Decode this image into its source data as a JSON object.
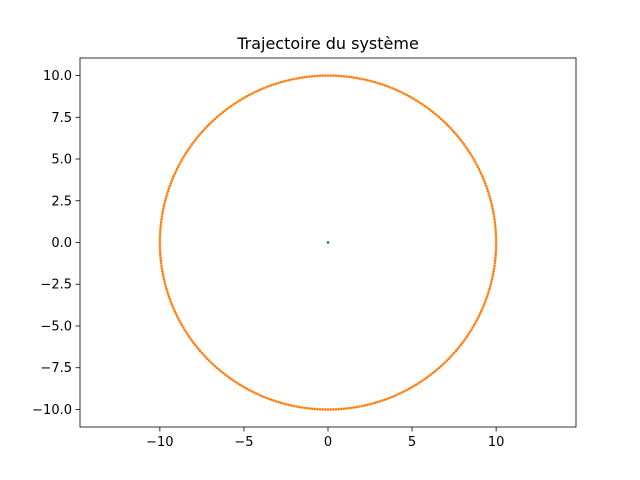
{
  "chart_data": {
    "type": "scatter",
    "title": "Trajectoire du système",
    "xlabel": "",
    "ylabel": "",
    "xlim": [
      -14.75,
      14.75
    ],
    "ylim": [
      -11.05,
      11.05
    ],
    "x_ticks": [
      -10,
      -5,
      0,
      5,
      10
    ],
    "x_tick_labels": [
      "−10",
      "−5",
      "0",
      "5",
      "10"
    ],
    "y_ticks": [
      -10.0,
      -7.5,
      -5.0,
      -2.5,
      0.0,
      2.5,
      5.0,
      7.5,
      10.0
    ],
    "y_tick_labels": [
      "−10.0",
      "−7.5",
      "−5.0",
      "−2.5",
      "0.0",
      "2.5",
      "5.0",
      "7.5",
      "10.0"
    ],
    "grid": false,
    "legend": "none",
    "series": [
      {
        "color": "#1f77b4",
        "x": [
          0.0
        ],
        "y": [
          0.0
        ]
      },
      {
        "color": "#ff7f0e",
        "shape": "circle",
        "center": [
          0.0,
          0.0
        ],
        "radius": 10.0,
        "points_count": 400
      }
    ]
  }
}
